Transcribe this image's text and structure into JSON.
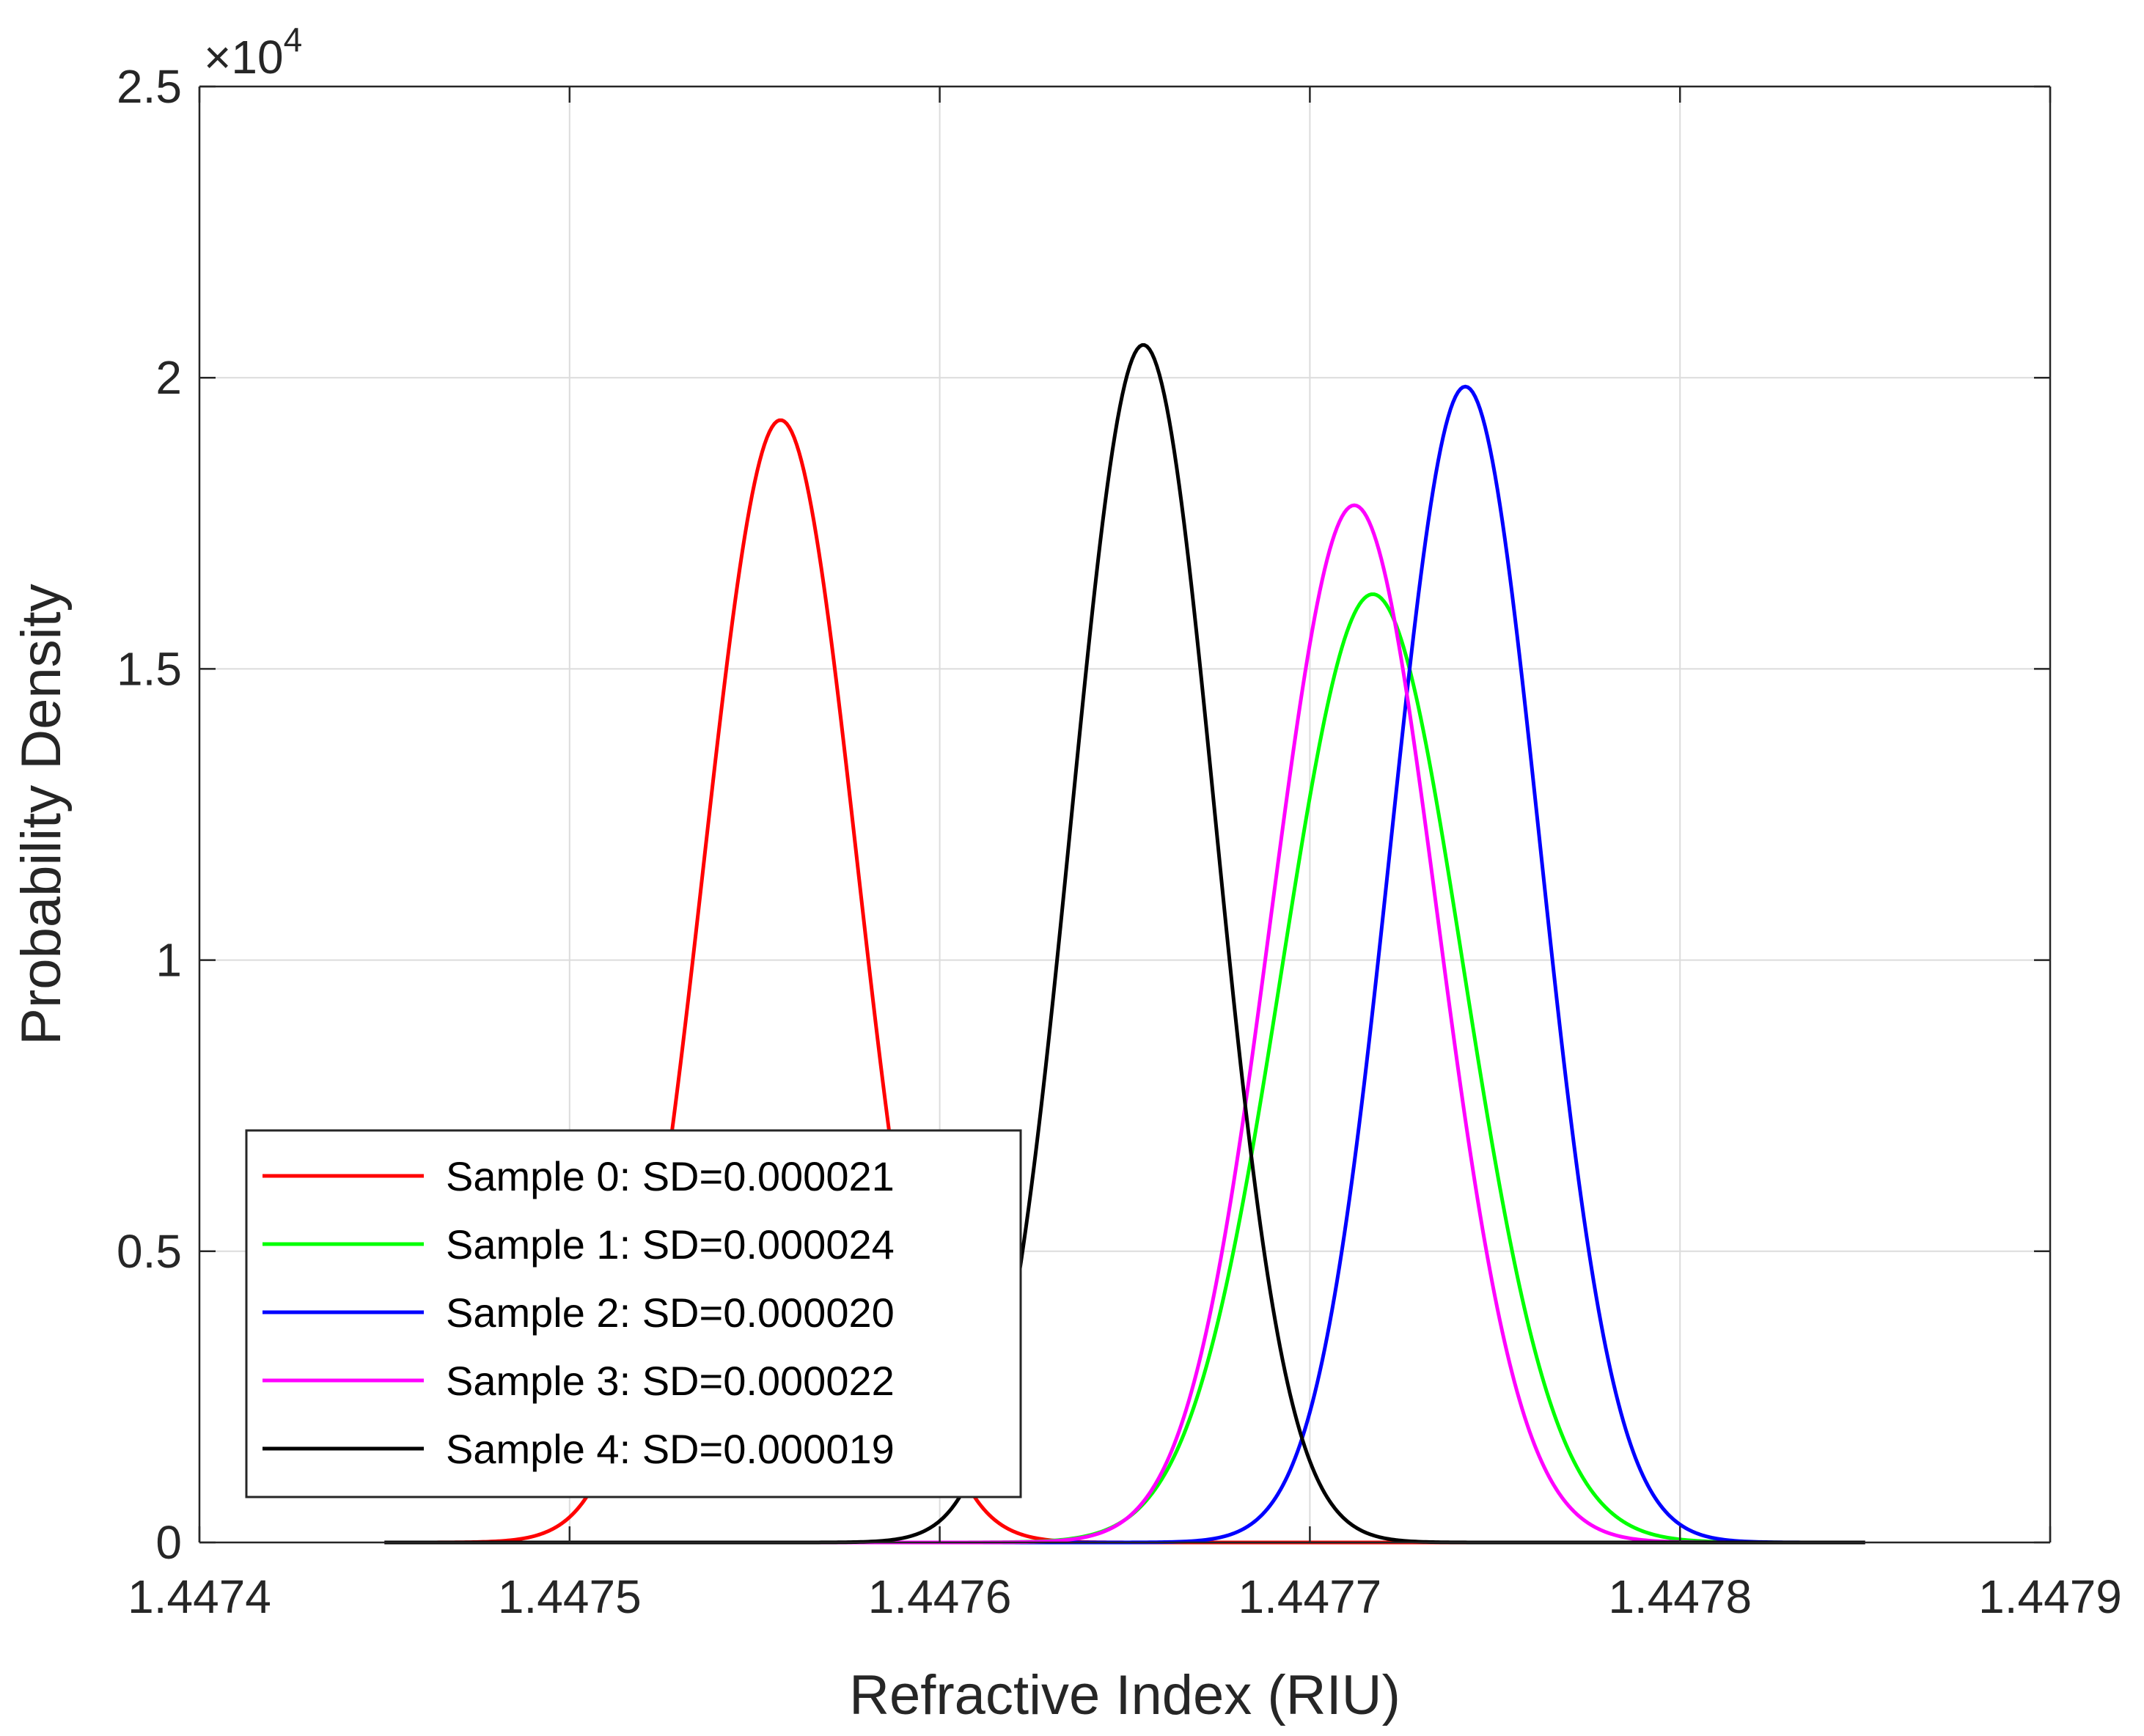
{
  "chart_data": {
    "type": "line",
    "title": "",
    "xlabel": "Refractive Index (RIU)",
    "ylabel": "Probability Density",
    "xlim": [
      1.4474,
      1.4479
    ],
    "ylim": [
      0,
      25000
    ],
    "x_ticks": [
      1.4474,
      1.4475,
      1.4476,
      1.4477,
      1.4478,
      1.4479
    ],
    "x_tick_labels": [
      "1.4474",
      "1.4475",
      "1.4476",
      "1.4477",
      "1.4478",
      "1.4479"
    ],
    "y_ticks": [
      0,
      5000,
      10000,
      15000,
      20000,
      25000
    ],
    "y_tick_labels": [
      "0",
      "0.5",
      "1",
      "1.5",
      "2",
      "2.5"
    ],
    "y_exponent_base": "×10",
    "y_exponent_power": "4",
    "grid": true,
    "legend_position": "bottom-left",
    "x_range_plotted": [
      1.44745,
      1.44785
    ],
    "series": [
      {
        "name": "Sample 0: SD=0.000021",
        "color": "#ff0000",
        "mean": 1.447557,
        "sd": 2.07e-05
      },
      {
        "name": "Sample 1: SD=0.000024",
        "color": "#00ff00",
        "mean": 1.447717,
        "sd": 2.45e-05
      },
      {
        "name": "Sample 2: SD=0.000020",
        "color": "#0000ff",
        "mean": 1.447742,
        "sd": 2.01e-05
      },
      {
        "name": "Sample 3: SD=0.000022",
        "color": "#ff00ff",
        "mean": 1.447712,
        "sd": 2.24e-05
      },
      {
        "name": "Sample 4: SD=0.000019",
        "color": "#000000",
        "mean": 1.447655,
        "sd": 1.94e-05
      }
    ]
  }
}
